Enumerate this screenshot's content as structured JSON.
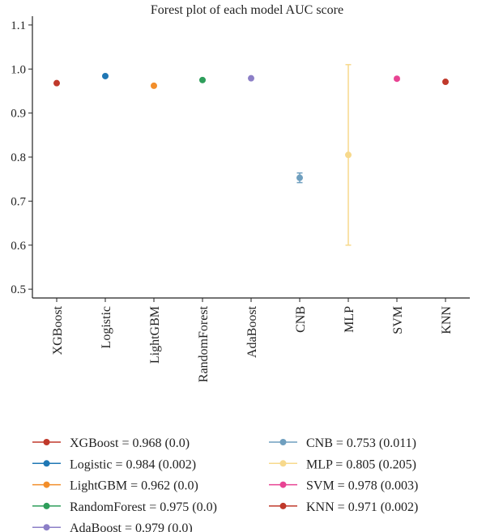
{
  "chart_data": {
    "type": "scatter",
    "title": "Forest plot of each model AUC score",
    "xlabel": "",
    "ylabel": "",
    "ylim": [
      0.48,
      1.12
    ],
    "yticks": [
      "0.5",
      "0.6",
      "0.7",
      "0.8",
      "0.9",
      "1.0",
      "1.1"
    ],
    "categories": [
      "XGBoost",
      "Logistic",
      "LightGBM",
      "RandomForest",
      "AdaBoost",
      "CNB",
      "MLP",
      "SVM",
      "KNN"
    ],
    "series": [
      {
        "name": "XGBoost",
        "value": 0.968,
        "err": 0.0,
        "color": "#c0392b",
        "legend": "XGBoost = 0.968 (0.0)"
      },
      {
        "name": "Logistic",
        "value": 0.984,
        "err": 0.002,
        "color": "#1f77b4",
        "legend": "Logistic = 0.984 (0.002)"
      },
      {
        "name": "LightGBM",
        "value": 0.962,
        "err": 0.0,
        "color": "#f28e2b",
        "legend": "LightGBM = 0.962 (0.0)"
      },
      {
        "name": "RandomForest",
        "value": 0.975,
        "err": 0.0,
        "color": "#2e9e5b",
        "legend": "RandomForest = 0.975 (0.0)"
      },
      {
        "name": "AdaBoost",
        "value": 0.979,
        "err": 0.0,
        "color": "#8c7fc7",
        "legend": "AdaBoost = 0.979 (0.0)"
      },
      {
        "name": "CNB",
        "value": 0.753,
        "err": 0.011,
        "color": "#6f9fbf",
        "legend": "CNB = 0.753 (0.011)"
      },
      {
        "name": "MLP",
        "value": 0.805,
        "err": 0.205,
        "color": "#f7d98c",
        "legend": "MLP = 0.805 (0.205)"
      },
      {
        "name": "SVM",
        "value": 0.978,
        "err": 0.003,
        "color": "#e84393",
        "legend": "SVM = 0.978 (0.003)"
      },
      {
        "name": "KNN",
        "value": 0.971,
        "err": 0.002,
        "color": "#c0392b",
        "legend": "KNN = 0.971 (0.002)"
      }
    ],
    "legend_placement": "bottom",
    "grid": false
  }
}
